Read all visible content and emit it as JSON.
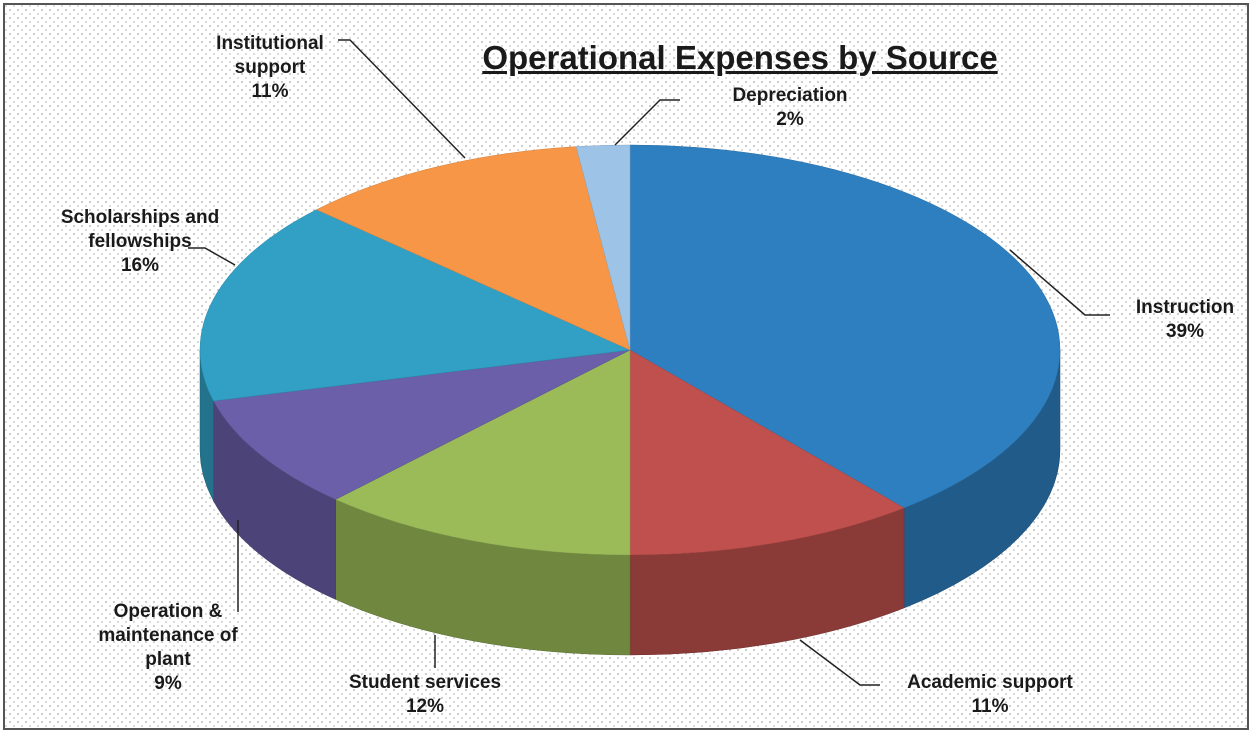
{
  "chart_data": {
    "type": "pie",
    "title": "Operational Expenses by Source",
    "categories": [
      "Instruction",
      "Academic support",
      "Student services",
      "Operation & maintenance of plant",
      "Scholarships and fellowships",
      "Institutional support",
      "Depreciation"
    ],
    "values": [
      39,
      11,
      12,
      9,
      16,
      11,
      2
    ],
    "value_labels": [
      "39%",
      "11%",
      "12%",
      "9%",
      "16%",
      "11%",
      "2%"
    ],
    "colors": [
      "#2e7fc0",
      "#c0504d",
      "#9bbb59",
      "#6a5fa8",
      "#31a0c4",
      "#f79646",
      "#9dc3e6"
    ]
  }
}
